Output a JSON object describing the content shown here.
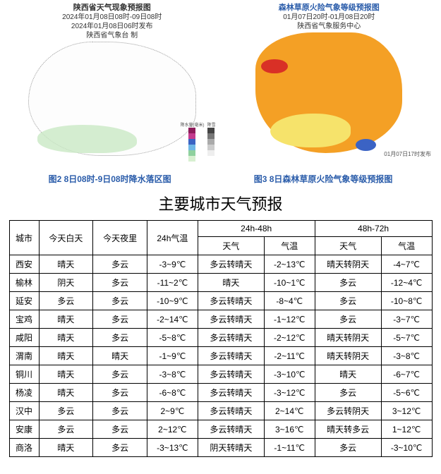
{
  "maps": {
    "left": {
      "title": "陕西省天气现象预报图",
      "line2": "2024年01月08日08时-09日08时",
      "line3": "2024年01月08日06时发布",
      "line4": "陕西省气象台 制",
      "legend_col1_label": "降水量(毫米)",
      "legend_col2_label": "降雪",
      "legend_vals": [
        "250",
        "100",
        "50",
        "25",
        "10",
        "0.1"
      ],
      "legend_snow": [
        "20",
        "10",
        "5",
        "2.5",
        "0.1"
      ]
    },
    "right": {
      "title": "森林草原火险气象等级预报图",
      "line2": "01月07日20时-01月08日20时",
      "line3": "陕西省气象服务中心",
      "footnote": "01月07日17时发布"
    }
  },
  "captions": {
    "left": "图2 8日08时-9日08时降水落区图",
    "right": "图3 8日森林草原火险气象等级预报图"
  },
  "main_title": "主要城市天气预报",
  "table": {
    "headers": {
      "city": "城市",
      "today_day": "今天白天",
      "today_night": "今天夜里",
      "temp24": "24h气温",
      "period2": "24h-48h",
      "period3": "48h-72h",
      "weather": "天气",
      "temp": "气温"
    },
    "rows": [
      {
        "city": "西安",
        "d": "晴天",
        "n": "多云",
        "t24": "-3~9℃",
        "w2": "多云转晴天",
        "t2": "-2~13℃",
        "w3": "晴天转阴天",
        "t3": "-4~7℃"
      },
      {
        "city": "榆林",
        "d": "阴天",
        "n": "多云",
        "t24": "-11~2℃",
        "w2": "晴天",
        "t2": "-10~1℃",
        "w3": "多云",
        "t3": "-12~4℃"
      },
      {
        "city": "延安",
        "d": "多云",
        "n": "多云",
        "t24": "-10~9℃",
        "w2": "多云转晴天",
        "t2": "-8~4℃",
        "w3": "多云",
        "t3": "-10~8℃"
      },
      {
        "city": "宝鸡",
        "d": "晴天",
        "n": "多云",
        "t24": "-2~14℃",
        "w2": "多云转晴天",
        "t2": "-1~12℃",
        "w3": "多云",
        "t3": "-3~7℃"
      },
      {
        "city": "咸阳",
        "d": "晴天",
        "n": "多云",
        "t24": "-5~8℃",
        "w2": "多云转晴天",
        "t2": "-2~12℃",
        "w3": "晴天转阴天",
        "t3": "-5~7℃"
      },
      {
        "city": "渭南",
        "d": "晴天",
        "n": "晴天",
        "t24": "-1~9℃",
        "w2": "多云转晴天",
        "t2": "-2~11℃",
        "w3": "晴天转阴天",
        "t3": "-3~8℃"
      },
      {
        "city": "铜川",
        "d": "晴天",
        "n": "多云",
        "t24": "-3~8℃",
        "w2": "多云转晴天",
        "t2": "-3~10℃",
        "w3": "晴天",
        "t3": "-6~7℃"
      },
      {
        "city": "杨凌",
        "d": "晴天",
        "n": "多云",
        "t24": "-6~8℃",
        "w2": "多云转晴天",
        "t2": "-3~12℃",
        "w3": "多云",
        "t3": "-5~6℃"
      },
      {
        "city": "汉中",
        "d": "多云",
        "n": "多云",
        "t24": "2~9℃",
        "w2": "多云转晴天",
        "t2": "2~14℃",
        "w3": "多云转阴天",
        "t3": "3~12℃"
      },
      {
        "city": "安康",
        "d": "多云",
        "n": "多云",
        "t24": "2~12℃",
        "w2": "多云转晴天",
        "t2": "3~16℃",
        "w3": "晴天转多云",
        "t3": "1~12℃"
      },
      {
        "city": "商洛",
        "d": "晴天",
        "n": "多云",
        "t24": "-3~13℃",
        "w2": "阴天转晴天",
        "t2": "-1~11℃",
        "w3": "多云",
        "t3": "-3~10℃"
      }
    ]
  }
}
